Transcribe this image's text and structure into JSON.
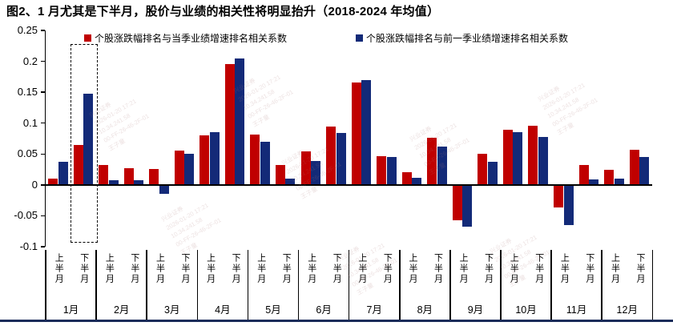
{
  "title": "图2、1 月尤其是下半月，股价与业绩的相关性将明显抬升（2018-2024 年均值）",
  "legend": [
    {
      "label": "个股涨跌幅排名与当季业绩增速排名相关系数",
      "color": "#c00000"
    },
    {
      "label": "个股涨跌幅排名与前一季业绩增速排名相关系数",
      "color": "#132a78"
    }
  ],
  "colors": {
    "red_series": "#c00000",
    "blue_series": "#132a78",
    "axis": "#000000",
    "bottom_rule": "#1b2c5a"
  },
  "watermark": {
    "text": "兴业证券\n2026-01-20 17:21\n10.34.241.58\n00-FF-26-46-2F-01\n王子童"
  },
  "chart_data": {
    "type": "bar",
    "title": "图2、1 月尤其是下半月，股价与业绩的相关性将明显抬升（2018-2024 年均值）",
    "months": [
      "1月",
      "2月",
      "3月",
      "4月",
      "5月",
      "6月",
      "7月",
      "8月",
      "9月",
      "10月",
      "11月",
      "12月"
    ],
    "halves": [
      "上半月",
      "下半月"
    ],
    "categories": [
      "1月上半月",
      "1月下半月",
      "2月上半月",
      "2月下半月",
      "3月上半月",
      "3月下半月",
      "4月上半月",
      "4月下半月",
      "5月上半月",
      "5月下半月",
      "6月上半月",
      "6月下半月",
      "7月上半月",
      "7月下半月",
      "8月上半月",
      "8月下半月",
      "9月上半月",
      "9月下半月",
      "10月上半月",
      "10月下半月",
      "11月上半月",
      "11月下半月",
      "12月上半月",
      "12月下半月"
    ],
    "series": [
      {
        "name": "个股涨跌幅排名与当季业绩增速排名相关系数",
        "color": "#c00000",
        "values": [
          0.01,
          0.065,
          0.032,
          0.027,
          0.026,
          0.055,
          0.08,
          0.195,
          0.082,
          0.032,
          0.054,
          0.094,
          0.166,
          0.046,
          0.02,
          0.076,
          -0.057,
          0.05,
          0.089,
          0.096,
          -0.036,
          0.032,
          0.024,
          0.057
        ]
      },
      {
        "name": "个股涨跌幅排名与前一季业绩增速排名相关系数",
        "color": "#132a78",
        "values": [
          0.037,
          0.147,
          0.008,
          0.008,
          -0.014,
          0.05,
          0.085,
          0.205,
          0.07,
          0.01,
          0.039,
          0.084,
          0.17,
          0.045,
          0.012,
          0.062,
          -0.068,
          0.037,
          0.086,
          0.078,
          -0.065,
          0.009,
          0.01,
          0.045
        ]
      }
    ],
    "ylim": [
      -0.1,
      0.25
    ],
    "ytick_labels": [
      "0.25",
      "0.2",
      "0.15",
      "0.1",
      "0.05",
      "0",
      "-0.05",
      "-0.1"
    ],
    "ytick_values": [
      0.25,
      0.2,
      0.15,
      0.1,
      0.05,
      0,
      -0.05,
      -0.1
    ],
    "grid": false,
    "legend_position": "top",
    "highlight": "1月下半月 (dashed box)"
  }
}
